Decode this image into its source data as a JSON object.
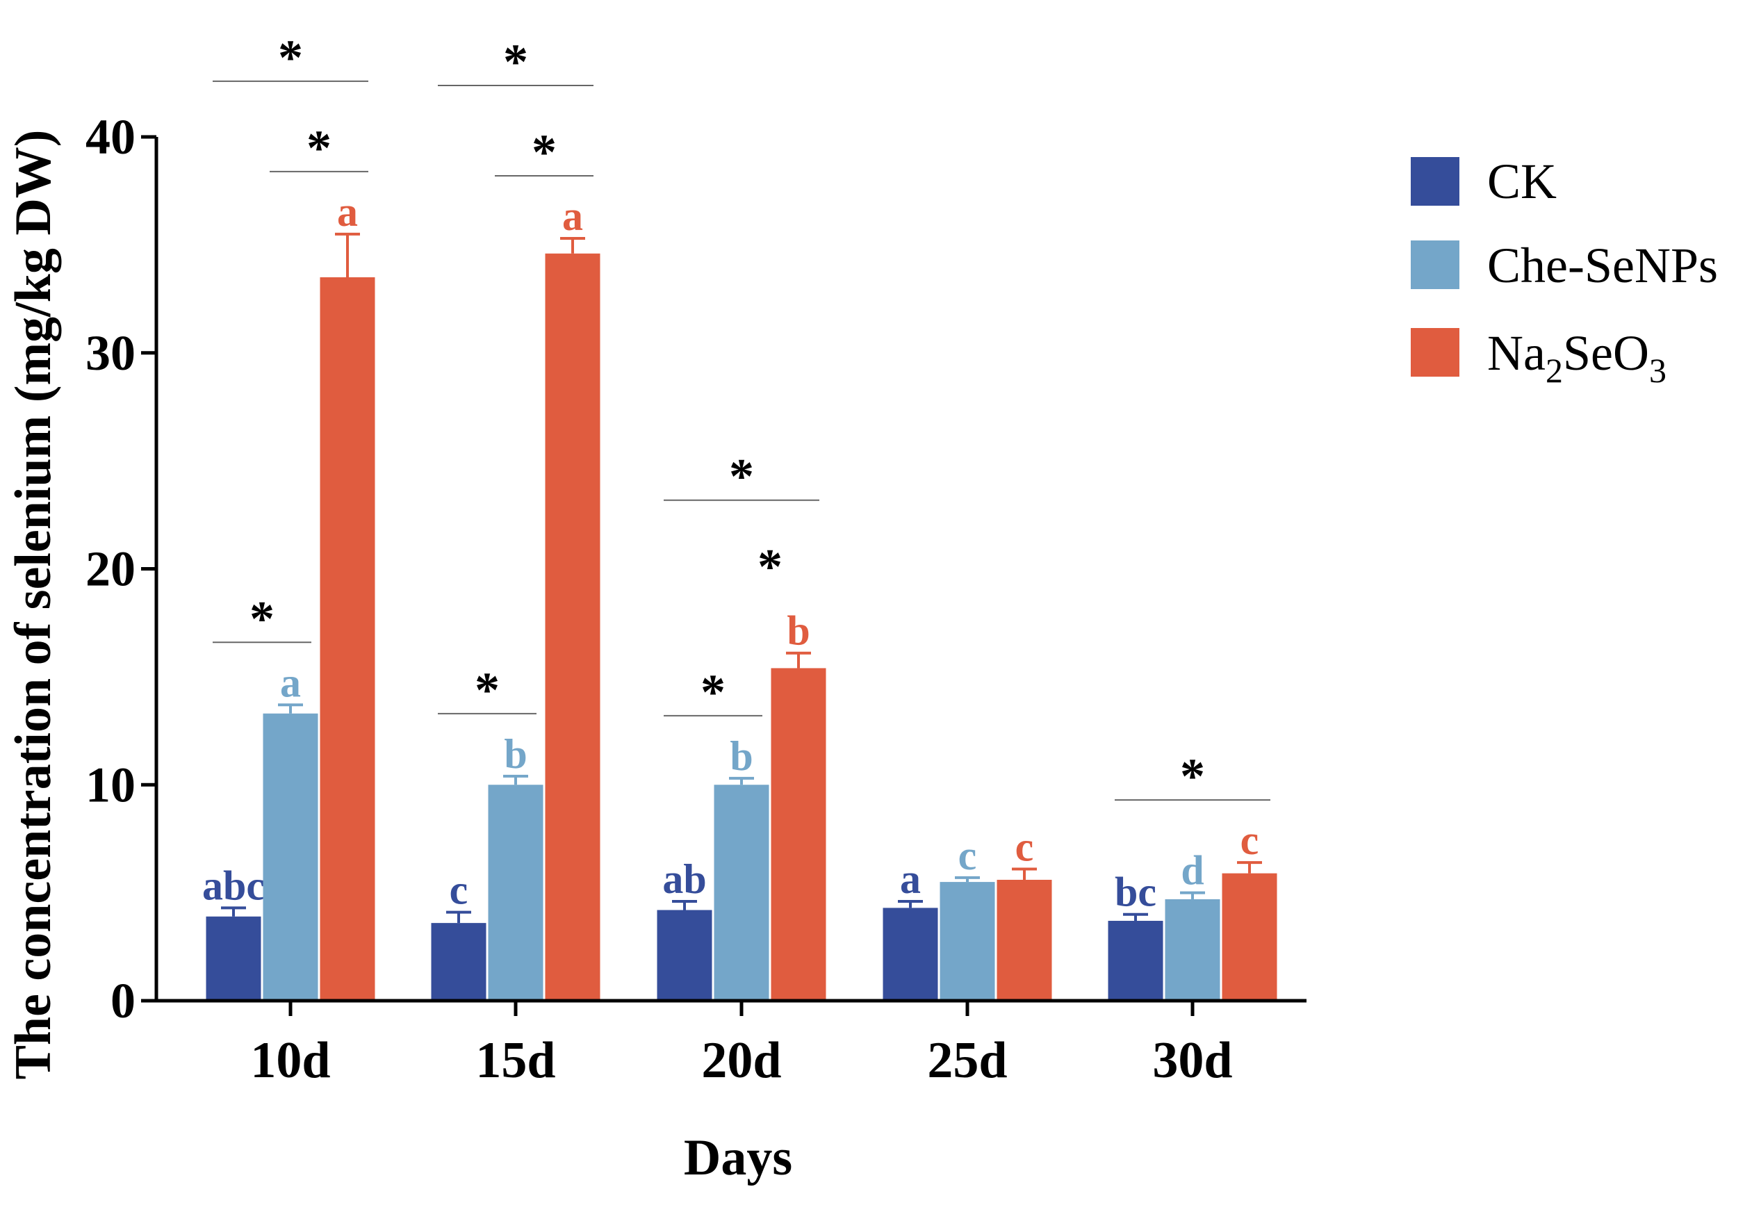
{
  "chart_data": {
    "type": "bar",
    "title": "",
    "xlabel": "Days",
    "ylabel": "The concentration of selenium (mg/kg DW)",
    "ylim": [
      0,
      40
    ],
    "yticks": [
      0,
      10,
      20,
      30,
      40
    ],
    "categories": [
      "10d",
      "15d",
      "20d",
      "25d",
      "30d"
    ],
    "legend_position": "right",
    "series": [
      {
        "name": "CK",
        "color": "#354d9a",
        "values": [
          3.9,
          3.6,
          4.2,
          4.3,
          3.7
        ],
        "errors": [
          0.4,
          0.5,
          0.4,
          0.3,
          0.3
        ],
        "letters": [
          "abc",
          "c",
          "ab",
          "a",
          "bc"
        ]
      },
      {
        "name": "Che-SeNPs",
        "color": "#74a6c9",
        "values": [
          13.3,
          10.0,
          10.0,
          5.5,
          4.7
        ],
        "errors": [
          0.4,
          0.4,
          0.3,
          0.2,
          0.3
        ],
        "letters": [
          "a",
          "b",
          "b",
          "c",
          "d"
        ]
      },
      {
        "name": "Na2SeO3",
        "name_parts": {
          "a": "Na",
          "b": "2",
          "c": "SeO",
          "d": "3"
        },
        "color": "#e05c3f",
        "values": [
          33.5,
          34.6,
          15.4,
          5.6,
          5.9
        ],
        "errors": [
          2.0,
          0.7,
          0.7,
          0.5,
          0.5
        ],
        "letters": [
          "a",
          "a",
          "b",
          "c",
          "c"
        ]
      }
    ],
    "significance_marker": "*",
    "significance": [
      {
        "category": "10d",
        "from": "CK",
        "to": "Che-SeNPs",
        "label": "*"
      },
      {
        "category": "10d",
        "from": "CK",
        "to": "Na2SeO3",
        "label": "*"
      },
      {
        "category": "10d",
        "from": "Che-SeNPs",
        "to": "Na2SeO3",
        "label": "*"
      },
      {
        "category": "15d",
        "from": "CK",
        "to": "Che-SeNPs",
        "label": "*"
      },
      {
        "category": "15d",
        "from": "CK",
        "to": "Na2SeO3",
        "label": "*"
      },
      {
        "category": "15d",
        "from": "Che-SeNPs",
        "to": "Na2SeO3",
        "label": "*"
      },
      {
        "category": "20d",
        "from": "CK",
        "to": "Che-SeNPs",
        "label": "*"
      },
      {
        "category": "20d",
        "from": "CK",
        "to": "Na2SeO3",
        "label": "*"
      },
      {
        "category": "20d",
        "from": "Che-SeNPs",
        "to": "Na2SeO3",
        "label": "*",
        "no_line": true
      },
      {
        "category": "30d",
        "from": "CK",
        "to": "Na2SeO3",
        "label": "*"
      }
    ]
  }
}
